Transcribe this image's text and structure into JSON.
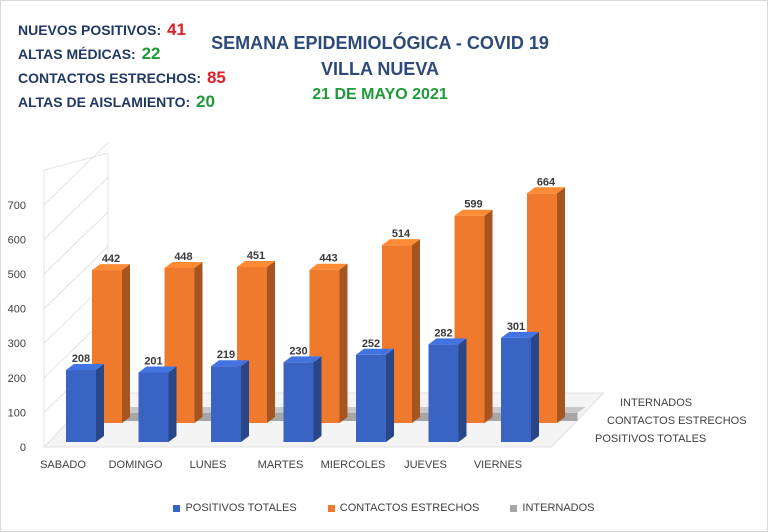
{
  "stats": [
    {
      "label": "NUEVOS POSITIVOS:",
      "value": "41",
      "color": "#e02020"
    },
    {
      "label": "ALTAS MÉDICAS:",
      "value": "22",
      "color": "#1f9a3a"
    },
    {
      "label": "CONTACTOS ESTRECHOS:",
      "value": "85",
      "color": "#e02020"
    },
    {
      "label": "ALTAS DE AISLAMIENTO:",
      "value": "20",
      "color": "#1f9a3a"
    }
  ],
  "title": {
    "line1": "SEMANA EPIDEMIOLÓGICA - COVID 19",
    "line2": "VILLA NUEVA",
    "date": "21 DE MAYO 2021"
  },
  "chart_data": {
    "type": "bar",
    "categories": [
      "SABADO",
      "DOMINGO",
      "LUNES",
      "MARTES",
      "MIERCOLES",
      "JUEVES",
      "VIERNES"
    ],
    "series": [
      {
        "name": "POSITIVOS TOTALES",
        "values": [
          208,
          201,
          219,
          230,
          252,
          282,
          301
        ],
        "color": "#3a64c4"
      },
      {
        "name": "CONTACTOS ESTRECHOS",
        "values": [
          442,
          448,
          451,
          443,
          514,
          599,
          664
        ],
        "color": "#ef7a2e"
      },
      {
        "name": "INTERNADOS",
        "values": [
          5,
          5,
          7,
          7,
          8,
          8,
          11
        ],
        "color": "#a6a6a6"
      }
    ],
    "yticks": [
      0,
      100,
      200,
      300,
      400,
      500,
      600,
      700
    ],
    "ylim": [
      0,
      800
    ],
    "depth_labels": [
      "INTERNADOS",
      "CONTACTOS ESTRECHOS",
      "POSITIVOS TOTALES"
    ],
    "legend": [
      "POSITIVOS TOTALES",
      "CONTACTOS ESTRECHOS",
      "INTERNADOS"
    ],
    "legend_position": "bottom",
    "grid": false
  }
}
